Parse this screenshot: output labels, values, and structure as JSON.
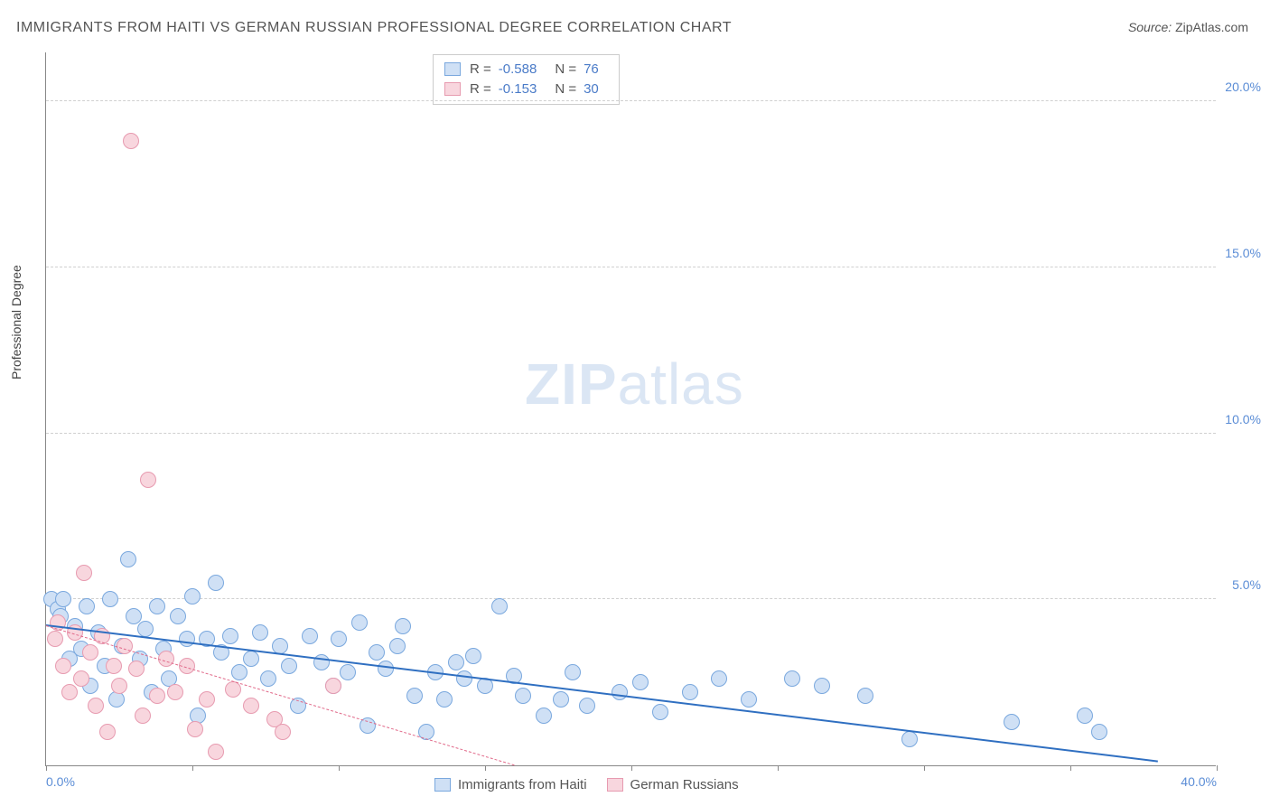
{
  "title": "IMMIGRANTS FROM HAITI VS GERMAN RUSSIAN PROFESSIONAL DEGREE CORRELATION CHART",
  "source_label": "Source:",
  "source_value": "ZipAtlas.com",
  "ylabel": "Professional Degree",
  "watermark_bold": "ZIP",
  "watermark_rest": "atlas",
  "chart": {
    "type": "scatter",
    "xlim": [
      0,
      40
    ],
    "ylim": [
      0,
      21.5
    ],
    "x_ticks": [
      0,
      5,
      10,
      15,
      20,
      25,
      30,
      35,
      40
    ],
    "x_tick_labels": {
      "0": "0.0%",
      "40": "40.0%"
    },
    "y_ticks": [
      5,
      10,
      15,
      20
    ],
    "y_tick_labels": {
      "5": "5.0%",
      "10": "10.0%",
      "15": "15.0%",
      "20": "20.0%"
    },
    "grid_color": "#d0d0d0",
    "axis_color": "#888888",
    "tick_label_color": "#5b8dd6",
    "background_color": "#ffffff",
    "marker_radius": 9,
    "marker_stroke_width": 1.2,
    "series": [
      {
        "name": "Immigrants from Haiti",
        "key": "haiti",
        "fill": "#cfe0f5",
        "stroke": "#7aa8de",
        "trend_color": "#2f6fc1",
        "trend_style": "solid",
        "R": "-0.588",
        "N": "76",
        "trend": {
          "x1": 0,
          "y1": 4.2,
          "x2": 38,
          "y2": 0.1
        },
        "points": [
          [
            0.2,
            5.0
          ],
          [
            0.4,
            4.7
          ],
          [
            0.5,
            4.5
          ],
          [
            0.6,
            5.0
          ],
          [
            0.8,
            3.2
          ],
          [
            1.0,
            4.2
          ],
          [
            1.2,
            3.5
          ],
          [
            1.4,
            4.8
          ],
          [
            1.5,
            2.4
          ],
          [
            1.8,
            4.0
          ],
          [
            2.0,
            3.0
          ],
          [
            2.2,
            5.0
          ],
          [
            2.4,
            2.0
          ],
          [
            2.6,
            3.6
          ],
          [
            2.8,
            6.2
          ],
          [
            3.0,
            4.5
          ],
          [
            3.2,
            3.2
          ],
          [
            3.4,
            4.1
          ],
          [
            3.6,
            2.2
          ],
          [
            3.8,
            4.8
          ],
          [
            4.0,
            3.5
          ],
          [
            4.2,
            2.6
          ],
          [
            4.5,
            4.5
          ],
          [
            4.8,
            3.8
          ],
          [
            5.0,
            5.1
          ],
          [
            5.2,
            1.5
          ],
          [
            5.5,
            3.8
          ],
          [
            5.8,
            5.5
          ],
          [
            6.0,
            3.4
          ],
          [
            6.3,
            3.9
          ],
          [
            6.6,
            2.8
          ],
          [
            7.0,
            3.2
          ],
          [
            7.3,
            4.0
          ],
          [
            7.6,
            2.6
          ],
          [
            8.0,
            3.6
          ],
          [
            8.3,
            3.0
          ],
          [
            8.6,
            1.8
          ],
          [
            9.0,
            3.9
          ],
          [
            9.4,
            3.1
          ],
          [
            9.8,
            2.4
          ],
          [
            10.0,
            3.8
          ],
          [
            10.3,
            2.8
          ],
          [
            10.7,
            4.3
          ],
          [
            11.0,
            1.2
          ],
          [
            11.3,
            3.4
          ],
          [
            11.6,
            2.9
          ],
          [
            12.0,
            3.6
          ],
          [
            12.2,
            4.2
          ],
          [
            12.6,
            2.1
          ],
          [
            13.0,
            1.0
          ],
          [
            13.3,
            2.8
          ],
          [
            13.6,
            2.0
          ],
          [
            14.0,
            3.1
          ],
          [
            14.3,
            2.6
          ],
          [
            14.6,
            3.3
          ],
          [
            15.0,
            2.4
          ],
          [
            15.5,
            4.8
          ],
          [
            16.0,
            2.7
          ],
          [
            16.3,
            2.1
          ],
          [
            17.0,
            1.5
          ],
          [
            17.6,
            2.0
          ],
          [
            18.0,
            2.8
          ],
          [
            18.5,
            1.8
          ],
          [
            19.6,
            2.2
          ],
          [
            20.3,
            2.5
          ],
          [
            21.0,
            1.6
          ],
          [
            22.0,
            2.2
          ],
          [
            23.0,
            2.6
          ],
          [
            24.0,
            2.0
          ],
          [
            25.5,
            2.6
          ],
          [
            26.5,
            2.4
          ],
          [
            28.0,
            2.1
          ],
          [
            29.5,
            0.8
          ],
          [
            33.0,
            1.3
          ],
          [
            35.5,
            1.5
          ],
          [
            36.0,
            1.0
          ]
        ]
      },
      {
        "name": "German Russians",
        "key": "german_russians",
        "fill": "#f8d6de",
        "stroke": "#e79bb0",
        "trend_color": "#e16a8a",
        "trend_style": "dashed",
        "R": "-0.153",
        "N": "30",
        "trend": {
          "x1": 0,
          "y1": 4.2,
          "x2": 16,
          "y2": 0.0
        },
        "points": [
          [
            0.3,
            3.8
          ],
          [
            0.4,
            4.3
          ],
          [
            0.6,
            3.0
          ],
          [
            0.8,
            2.2
          ],
          [
            1.0,
            4.0
          ],
          [
            1.2,
            2.6
          ],
          [
            1.3,
            5.8
          ],
          [
            1.5,
            3.4
          ],
          [
            1.7,
            1.8
          ],
          [
            1.9,
            3.9
          ],
          [
            2.1,
            1.0
          ],
          [
            2.3,
            3.0
          ],
          [
            2.5,
            2.4
          ],
          [
            2.7,
            3.6
          ],
          [
            2.9,
            18.8
          ],
          [
            3.1,
            2.9
          ],
          [
            3.3,
            1.5
          ],
          [
            3.5,
            8.6
          ],
          [
            3.8,
            2.1
          ],
          [
            4.1,
            3.2
          ],
          [
            4.4,
            2.2
          ],
          [
            4.8,
            3.0
          ],
          [
            5.1,
            1.1
          ],
          [
            5.5,
            2.0
          ],
          [
            5.8,
            0.4
          ],
          [
            6.4,
            2.3
          ],
          [
            7.0,
            1.8
          ],
          [
            7.8,
            1.4
          ],
          [
            8.1,
            1.0
          ],
          [
            9.8,
            2.4
          ]
        ]
      }
    ]
  },
  "legend_bottom": [
    {
      "label": "Immigrants from Haiti",
      "fill": "#cfe0f5",
      "stroke": "#7aa8de"
    },
    {
      "label": "German Russians",
      "fill": "#f8d6de",
      "stroke": "#e79bb0"
    }
  ]
}
